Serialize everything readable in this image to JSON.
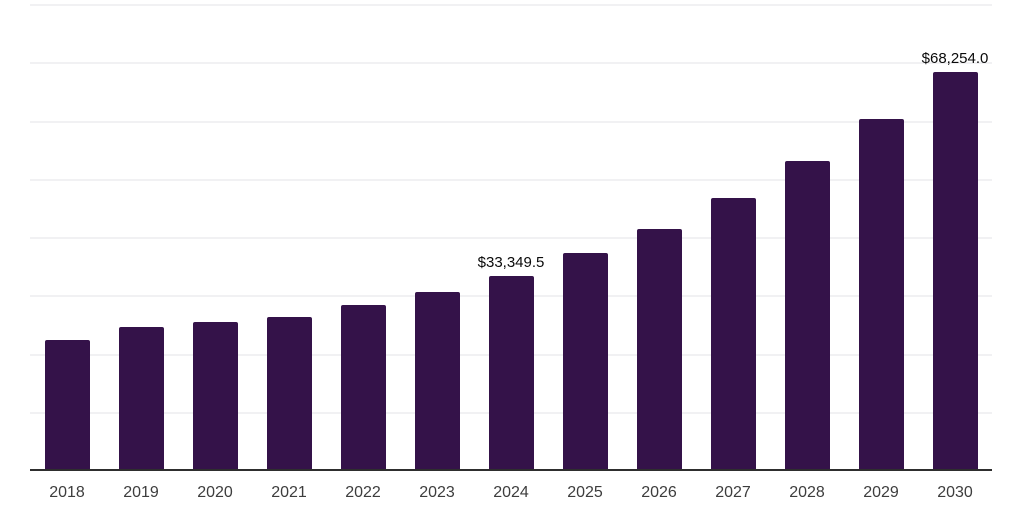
{
  "chart_data": {
    "type": "bar",
    "title": "",
    "xlabel": "",
    "ylabel": "",
    "categories": [
      "2018",
      "2019",
      "2020",
      "2021",
      "2022",
      "2023",
      "2024",
      "2025",
      "2026",
      "2027",
      "2028",
      "2029",
      "2030"
    ],
    "values": [
      22300,
      24600,
      25400,
      26300,
      28300,
      30500,
      33349.5,
      37300,
      41400,
      46700,
      53000,
      60300,
      68254.0
    ],
    "data_labels": [
      {
        "category": "2024",
        "text": "$33,349.5"
      },
      {
        "category": "2030",
        "text": "$68,254.0"
      }
    ],
    "ylim": [
      0,
      80000
    ],
    "gridline_step": 10000,
    "grid": true,
    "legend": false,
    "y_axis_tick_labels_visible": false,
    "colors": {
      "bar": "#341249",
      "gridline": "#f1f1f3",
      "axis_line": "#2e2e2e",
      "x_tick_label": "#3d3d3d",
      "data_label": "#0a0a0a",
      "background": "#ffffff"
    }
  }
}
